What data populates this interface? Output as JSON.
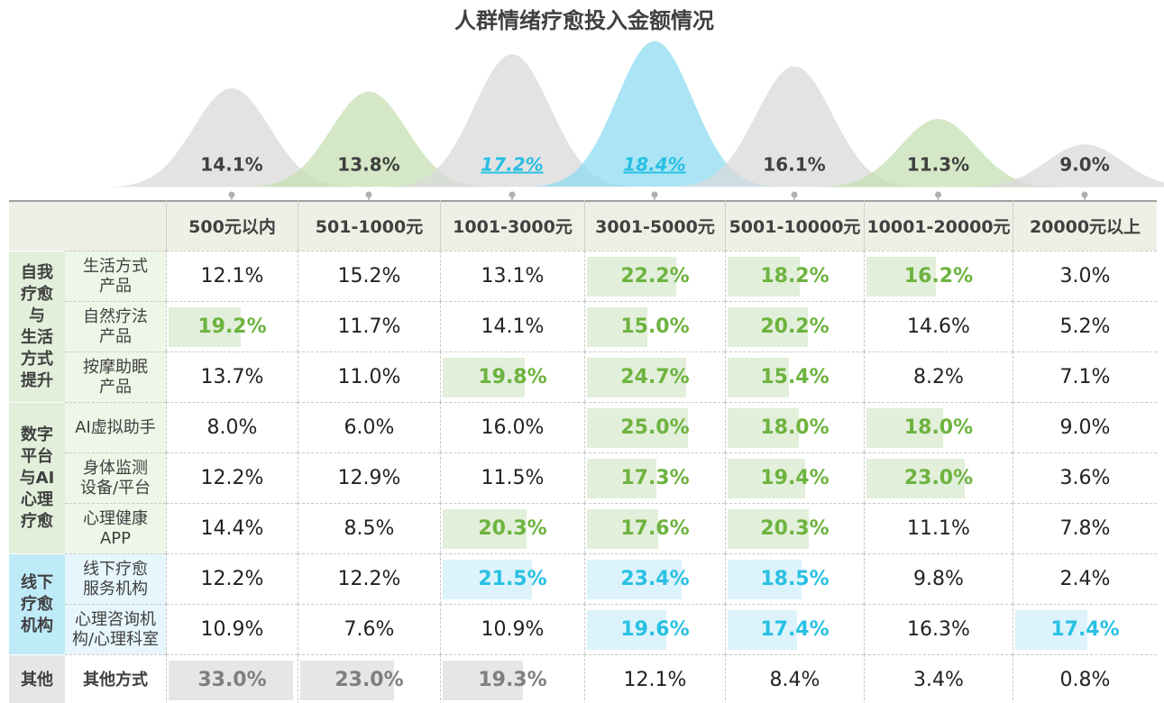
{
  "chart_data": {
    "type": "bell",
    "title": "人群情绪疗愈投入金额情况",
    "categories": [
      "500元以内",
      "501-1000元",
      "1001-3000元",
      "3001-5000元",
      "5001-10000元",
      "10001-20000元",
      "20000元以上"
    ],
    "values": [
      14.1,
      13.8,
      17.2,
      18.4,
      16.1,
      11.3,
      9.0
    ],
    "value_labels": [
      "14.1%",
      "13.8%",
      "17.2%",
      "18.4%",
      "16.1%",
      "11.3%",
      "9.0%"
    ],
    "colors": [
      "#d9d9d9",
      "#c5e0b4",
      "#d9d9d9",
      "#8fdcf2",
      "#d9d9d9",
      "#c5e0b4",
      "#d9d9d9"
    ],
    "highlight": [
      false,
      false,
      true,
      true,
      false,
      false,
      false
    ]
  },
  "palette": {
    "green": {
      "text": "#6db33f",
      "bg": "#e2efda"
    },
    "blue": {
      "text": "#29c0e3",
      "bg": "#dcf3fb"
    },
    "gray": {
      "text": "#7f7f7f",
      "bg": "#e6e6e6"
    }
  },
  "table": {
    "groups": [
      {
        "lines": [
          "自我",
          "疗愈",
          "与",
          "生活",
          "方式",
          "提升"
        ],
        "color": "#e2efda",
        "label_color": "#eef6e8",
        "rows": [
          {
            "lines": [
              "生活方式",
              "产品"
            ],
            "values": [
              12.1,
              15.2,
              13.1,
              22.2,
              18.2,
              16.2,
              3.0
            ],
            "labels": [
              "12.1%",
              "15.2%",
              "13.1%",
              "22.2%",
              "18.2%",
              "16.2%",
              "3.0%"
            ],
            "highlight": [
              null,
              null,
              null,
              "green",
              "green",
              "green",
              null
            ]
          },
          {
            "lines": [
              "自然疗法",
              "产品"
            ],
            "values": [
              19.2,
              11.7,
              14.1,
              15.0,
              20.2,
              14.6,
              5.2
            ],
            "labels": [
              "19.2%",
              "11.7%",
              "14.1%",
              "15.0%",
              "20.2%",
              "14.6%",
              "5.2%"
            ],
            "highlight": [
              "green",
              null,
              null,
              "green",
              "green",
              null,
              null
            ]
          },
          {
            "lines": [
              "按摩助眠",
              "产品"
            ],
            "values": [
              13.7,
              11.0,
              19.8,
              24.7,
              15.4,
              8.2,
              7.1
            ],
            "labels": [
              "13.7%",
              "11.0%",
              "19.8%",
              "24.7%",
              "15.4%",
              "8.2%",
              "7.1%"
            ],
            "highlight": [
              null,
              null,
              "green",
              "green",
              "green",
              null,
              null
            ]
          }
        ]
      },
      {
        "lines": [
          "数字",
          "平台",
          "与AI",
          "心理",
          "疗愈"
        ],
        "color": "#e2efda",
        "label_color": "#eef6e8",
        "rows": [
          {
            "lines": [
              "AI虚拟助手"
            ],
            "values": [
              8.0,
              6.0,
              16.0,
              25.0,
              18.0,
              18.0,
              9.0
            ],
            "labels": [
              "8.0%",
              "6.0%",
              "16.0%",
              "25.0%",
              "18.0%",
              "18.0%",
              "9.0%"
            ],
            "highlight": [
              null,
              null,
              null,
              "green",
              "green",
              "green",
              null
            ]
          },
          {
            "lines": [
              "身体监测",
              "设备/平台"
            ],
            "values": [
              12.2,
              12.9,
              11.5,
              17.3,
              19.4,
              23.0,
              3.6
            ],
            "labels": [
              "12.2%",
              "12.9%",
              "11.5%",
              "17.3%",
              "19.4%",
              "23.0%",
              "3.6%"
            ],
            "highlight": [
              null,
              null,
              null,
              "green",
              "green",
              "green",
              null
            ]
          },
          {
            "lines": [
              "心理健康",
              "APP"
            ],
            "values": [
              14.4,
              8.5,
              20.3,
              17.6,
              20.3,
              11.1,
              7.8
            ],
            "labels": [
              "14.4%",
              "8.5%",
              "20.3%",
              "17.6%",
              "20.3%",
              "11.1%",
              "7.8%"
            ],
            "highlight": [
              null,
              null,
              "green",
              "green",
              "green",
              null,
              null
            ]
          }
        ]
      },
      {
        "lines": [
          "线下",
          "疗愈",
          "机构"
        ],
        "color": "#bfeaf8",
        "label_color": "#e6f6fc",
        "rows": [
          {
            "lines": [
              "线下疗愈",
              "服务机构"
            ],
            "values": [
              12.2,
              12.2,
              21.5,
              23.4,
              18.5,
              9.8,
              2.4
            ],
            "labels": [
              "12.2%",
              "12.2%",
              "21.5%",
              "23.4%",
              "18.5%",
              "9.8%",
              "2.4%"
            ],
            "highlight": [
              null,
              null,
              "blue",
              "blue",
              "blue",
              null,
              null
            ]
          },
          {
            "lines": [
              "心理咨询机",
              "构/心理科室"
            ],
            "values": [
              10.9,
              7.6,
              10.9,
              19.6,
              17.4,
              16.3,
              17.4
            ],
            "labels": [
              "10.9%",
              "7.6%",
              "10.9%",
              "19.6%",
              "17.4%",
              "16.3%",
              "17.4%"
            ],
            "highlight": [
              null,
              null,
              null,
              "blue",
              "blue",
              null,
              "blue"
            ]
          }
        ]
      },
      {
        "lines": [
          "其他"
        ],
        "color": "#e6e6e6",
        "label_color": "#ffffff",
        "rows": [
          {
            "lines": [
              "其他方式"
            ],
            "bold": true,
            "values": [
              33.0,
              23.0,
              19.3,
              12.1,
              8.4,
              3.4,
              0.8
            ],
            "labels": [
              "33.0%",
              "23.0%",
              "19.3%",
              "12.1%",
              "8.4%",
              "3.4%",
              "0.8%"
            ],
            "highlight": [
              "gray",
              "gray",
              "gray",
              null,
              null,
              null,
              null
            ]
          }
        ]
      }
    ]
  }
}
